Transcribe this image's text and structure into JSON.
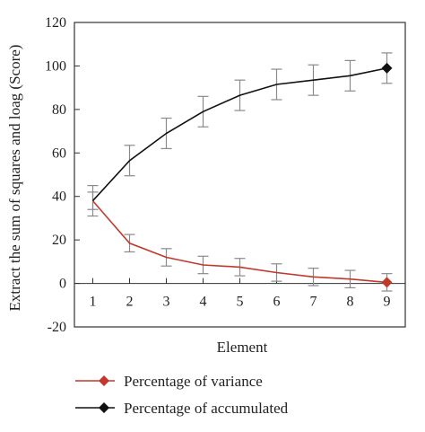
{
  "chart_data": {
    "type": "line",
    "xlabel": "Element",
    "ylabel": "Extract the sum of squares and loag (Score)",
    "x": [
      1,
      2,
      3,
      4,
      5,
      6,
      7,
      8,
      9
    ],
    "xlim": [
      0.5,
      9.5
    ],
    "ylim": [
      -20,
      120
    ],
    "yticks": [
      -20,
      0,
      20,
      40,
      60,
      80,
      100,
      120
    ],
    "grid": false,
    "legend_position": "bottom",
    "series": [
      {
        "name": "Percentage of variance",
        "color": "#c0392b",
        "marker": "diamond",
        "values": [
          38,
          18.5,
          12,
          8.5,
          7.5,
          5,
          3,
          2,
          0.5
        ],
        "errors": [
          4,
          4,
          4,
          4,
          4,
          4,
          4,
          4,
          4
        ]
      },
      {
        "name": "Percentage of accumulated",
        "color": "#111111",
        "marker": "diamond",
        "values": [
          38,
          56.5,
          69,
          79,
          86.5,
          91.5,
          93.5,
          95.5,
          99
        ],
        "errors": [
          7,
          7,
          7,
          7,
          7,
          7,
          7,
          7,
          7
        ]
      }
    ]
  }
}
